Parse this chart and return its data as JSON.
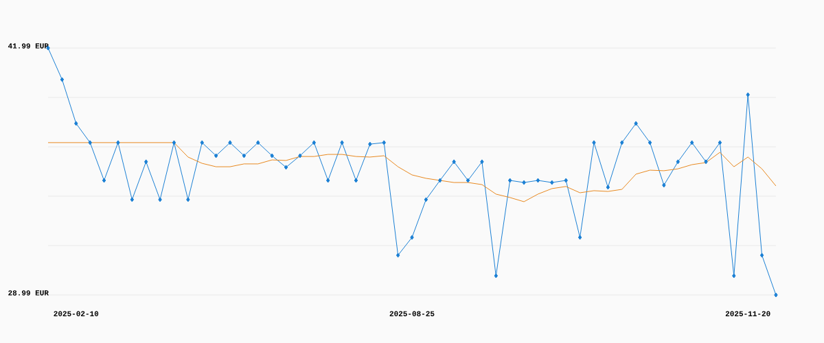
{
  "chart_data": {
    "type": "line",
    "categories": [
      null,
      null,
      "2025-02-10",
      null,
      null,
      null,
      null,
      null,
      null,
      null,
      null,
      null,
      null,
      null,
      null,
      null,
      null,
      null,
      null,
      null,
      null,
      null,
      null,
      null,
      null,
      null,
      "2025-08-25",
      null,
      null,
      null,
      null,
      null,
      null,
      null,
      null,
      null,
      null,
      null,
      null,
      null,
      null,
      null,
      null,
      null,
      null,
      null,
      null,
      null,
      null,
      null,
      "2025-11-20",
      null,
      null
    ],
    "series": [
      {
        "color": "#1a7fd4",
        "marker": "diamond",
        "values": [
          41.99,
          40.33,
          38.02,
          37.01,
          35.02,
          37.01,
          34.01,
          36.0,
          34.01,
          37.01,
          34.01,
          37.01,
          36.32,
          37.01,
          36.32,
          37.01,
          36.32,
          35.71,
          36.32,
          37.01,
          35.02,
          37.01,
          35.02,
          36.93,
          37.01,
          31.08,
          32.02,
          34.01,
          35.02,
          36.0,
          35.02,
          36.0,
          30.0,
          35.02,
          34.91,
          35.02,
          34.91,
          35.02,
          32.02,
          37.01,
          34.66,
          37.01,
          38.02,
          37.01,
          34.77,
          36.0,
          37.01,
          36.0,
          37.01,
          30.0,
          39.53,
          31.08,
          28.99
        ]
      },
      {
        "color": "#e8891f",
        "marker": "none",
        "values": [
          37.01,
          37.01,
          37.01,
          37.01,
          37.01,
          37.01,
          37.01,
          37.01,
          37.01,
          37.01,
          36.25,
          35.92,
          35.74,
          35.74,
          35.89,
          35.89,
          36.1,
          36.07,
          36.28,
          36.28,
          36.39,
          36.39,
          36.28,
          36.25,
          36.32,
          35.74,
          35.31,
          35.13,
          35.02,
          34.91,
          34.91,
          34.8,
          34.3,
          34.12,
          33.9,
          34.3,
          34.59,
          34.7,
          34.37,
          34.48,
          34.44,
          34.55,
          35.35,
          35.56,
          35.53,
          35.63,
          35.85,
          35.96,
          36.5,
          35.74,
          36.25,
          35.63,
          34.73
        ]
      }
    ],
    "ylim": [
      28.99,
      41.99
    ],
    "yticks": [
      {
        "value": 41.99,
        "label": "41.99 EUR"
      },
      {
        "value": 39.39,
        "label": null
      },
      {
        "value": 36.79,
        "label": null
      },
      {
        "value": 34.19,
        "label": null
      },
      {
        "value": 31.59,
        "label": null
      },
      {
        "value": 28.99,
        "label": "28.99 EUR"
      }
    ],
    "grid": "y"
  }
}
